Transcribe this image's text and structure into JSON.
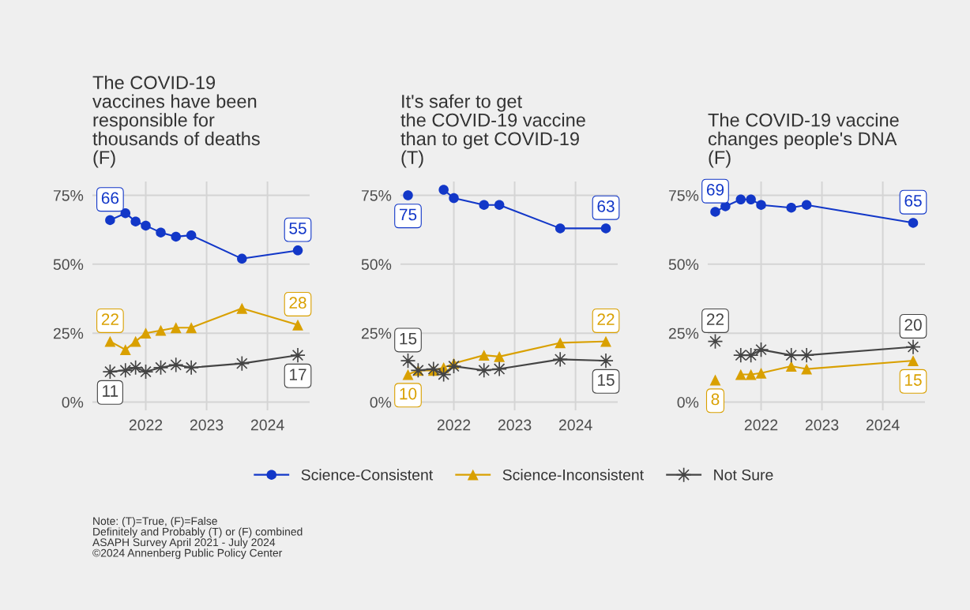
{
  "chart_data": [
    {
      "type": "line",
      "title": "The COVID-19\nvaccines have been\nresponsible for\nthousands of deaths\n(F)",
      "x": [
        "2021-06",
        "2021-09",
        "2021-11",
        "2022-01",
        "2022-04",
        "2022-07",
        "2022-10",
        "2023-08",
        "2024-07"
      ],
      "series": [
        {
          "name": "Science-Consistent",
          "color": "#1237c8",
          "marker": "circle",
          "values": [
            66,
            68.5,
            65.5,
            64,
            61.5,
            60,
            60.5,
            52,
            55
          ],
          "value_labels": [
            "66",
            null,
            null,
            null,
            null,
            null,
            null,
            null,
            "55"
          ]
        },
        {
          "name": "Science-Inconsistent",
          "color": "#d9a000",
          "marker": "triangle",
          "values": [
            22,
            19,
            22,
            25,
            26,
            27,
            27,
            34,
            28
          ],
          "value_labels": [
            "22",
            null,
            null,
            null,
            null,
            null,
            null,
            null,
            "28"
          ]
        },
        {
          "name": "Not Sure",
          "color": "#444444",
          "marker": "star",
          "values": [
            11,
            11.5,
            12.5,
            11,
            12.5,
            13.5,
            12.5,
            14,
            17
          ],
          "value_labels": [
            "11",
            null,
            null,
            null,
            null,
            null,
            null,
            null,
            "17"
          ]
        }
      ],
      "xlim": [
        "2021-02-15",
        "2024-09-10"
      ],
      "xticks": [
        {
          "value": "2022",
          "label": "2022"
        },
        {
          "value": "2023",
          "label": "2023"
        },
        {
          "value": "2024",
          "label": "2024"
        }
      ],
      "ylim": [
        -3,
        80
      ],
      "yticks": [
        {
          "value": 0,
          "label": "0%"
        },
        {
          "value": 25,
          "label": "25%"
        },
        {
          "value": 50,
          "label": "50%"
        },
        {
          "value": 75,
          "label": "75%"
        }
      ],
      "grid": true,
      "legend": "bottom",
      "annotations": [
        "Note: (T)=True, (F)=False\nDefinitely and Probably (T) or (F) combined\nASAPH Survey April 2021 - July 2024\n©2024 Annenberg Public Policy Center"
      ]
    },
    {
      "type": "line",
      "title": "It's safer to get\nthe COVID-19 vaccine\nthan to get COVID-19\n(T)",
      "x": [
        "2021-04",
        "2021-06",
        "2021-09",
        "2021-11",
        "2022-01",
        "2022-07",
        "2022-10",
        "2023-10",
        "2024-07"
      ],
      "series": [
        {
          "color": "#1237c8",
          "marker": "circle",
          "values": [
            75,
            null,
            null,
            77,
            74,
            71.5,
            71.5,
            63,
            63
          ],
          "value_labels": [
            "75",
            null,
            null,
            null,
            null,
            null,
            null,
            null,
            "63"
          ]
        },
        {
          "color": "#d9a000",
          "marker": "triangle",
          "values": [
            10,
            11.5,
            11.5,
            12.5,
            14,
            17,
            16.5,
            21.5,
            22
          ],
          "value_labels": [
            "10",
            null,
            null,
            null,
            null,
            null,
            null,
            null,
            "22"
          ]
        },
        {
          "color": "#444444",
          "marker": "star",
          "values": [
            15,
            11.5,
            12,
            10,
            13,
            11.5,
            12,
            15.5,
            15
          ],
          "value_labels": [
            "15",
            null,
            null,
            null,
            null,
            null,
            null,
            null,
            "15"
          ]
        }
      ],
      "xlim": [
        "2021-02-15",
        "2024-09-10"
      ],
      "xticks": [
        {
          "value": "2022",
          "label": "2022"
        },
        {
          "value": "2023",
          "label": "2023"
        },
        {
          "value": "2024",
          "label": "2024"
        }
      ],
      "ylim": [
        -3,
        80
      ],
      "yticks": [
        {
          "value": 0,
          "label": "0%"
        },
        {
          "value": 25,
          "label": "25%"
        },
        {
          "value": 50,
          "label": "50%"
        },
        {
          "value": 75,
          "label": "75%"
        }
      ],
      "grid": true
    },
    {
      "type": "line",
      "title": "The COVID-19 vaccine\nchanges people's DNA\n(F)",
      "x": [
        "2021-04",
        "2021-06",
        "2021-09",
        "2021-11",
        "2022-01",
        "2022-07",
        "2022-10",
        "2024-07"
      ],
      "series": [
        {
          "color": "#1237c8",
          "marker": "circle",
          "values": [
            69,
            71,
            73.5,
            73.5,
            71.5,
            70.5,
            71.5,
            65
          ],
          "value_labels": [
            "69",
            null,
            null,
            null,
            null,
            null,
            null,
            "65"
          ]
        },
        {
          "color": "#d9a000",
          "marker": "triangle",
          "values": [
            8,
            null,
            10,
            10,
            10.5,
            13,
            12,
            15
          ],
          "value_labels": [
            "8",
            null,
            null,
            null,
            null,
            null,
            null,
            "15"
          ]
        },
        {
          "color": "#444444",
          "marker": "star",
          "values": [
            22,
            null,
            17,
            17,
            19,
            17,
            17,
            20
          ],
          "value_labels": [
            "22",
            null,
            null,
            null,
            null,
            null,
            null,
            "20"
          ]
        }
      ],
      "xlim": [
        "2021-02-15",
        "2024-09-10"
      ],
      "xticks": [
        {
          "value": "2022",
          "label": "2022"
        },
        {
          "value": "2023",
          "label": "2023"
        },
        {
          "value": "2024",
          "label": "2024"
        }
      ],
      "ylim": [
        -3,
        80
      ],
      "yticks": [
        {
          "value": 0,
          "label": "0%"
        },
        {
          "value": 25,
          "label": "25%"
        },
        {
          "value": 50,
          "label": "50%"
        },
        {
          "value": 75,
          "label": "75%"
        }
      ],
      "grid": true
    }
  ]
}
